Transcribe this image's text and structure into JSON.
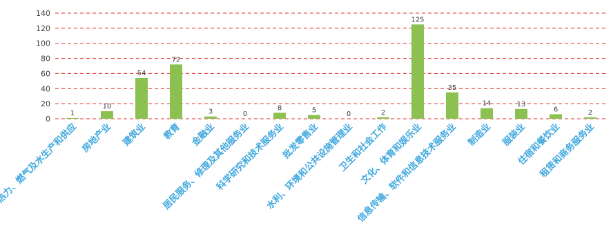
{
  "chart_data": {
    "type": "bar",
    "categories": [
      "电力、热力、燃气及水生产和供应",
      "房地产业",
      "建筑业",
      "教育",
      "金融业",
      "居民服务、修理及其他服务业",
      "科学研究和技术服务业",
      "批发零售业",
      "水利、环境和公共设施管理业",
      "卫生和社会工作",
      "文化、体育和娱乐业",
      "信息传输、软件和信息技术服务业",
      "制造业",
      "服装业",
      "住宿和餐饮业",
      "租赁和商务服务业"
    ],
    "values": [
      1,
      10,
      54,
      72,
      3,
      0,
      8,
      5,
      0,
      2,
      125,
      35,
      14,
      13,
      6,
      2
    ],
    "data_labels": [
      "1",
      "10",
      "54",
      "72",
      "3",
      "0",
      "8",
      "5",
      "0",
      "2",
      "125",
      "35",
      "14",
      "13",
      "6",
      "2"
    ],
    "yticks": [
      "0",
      "20",
      "40",
      "60",
      "80",
      "100",
      "120",
      "140"
    ],
    "ylim": [
      0,
      140
    ],
    "grid": true,
    "legend": "none",
    "colors": {
      "bar": "#8cc152",
      "grid": "#e0302c",
      "tick_label": "#404040",
      "category_label": "#40a8de"
    }
  }
}
